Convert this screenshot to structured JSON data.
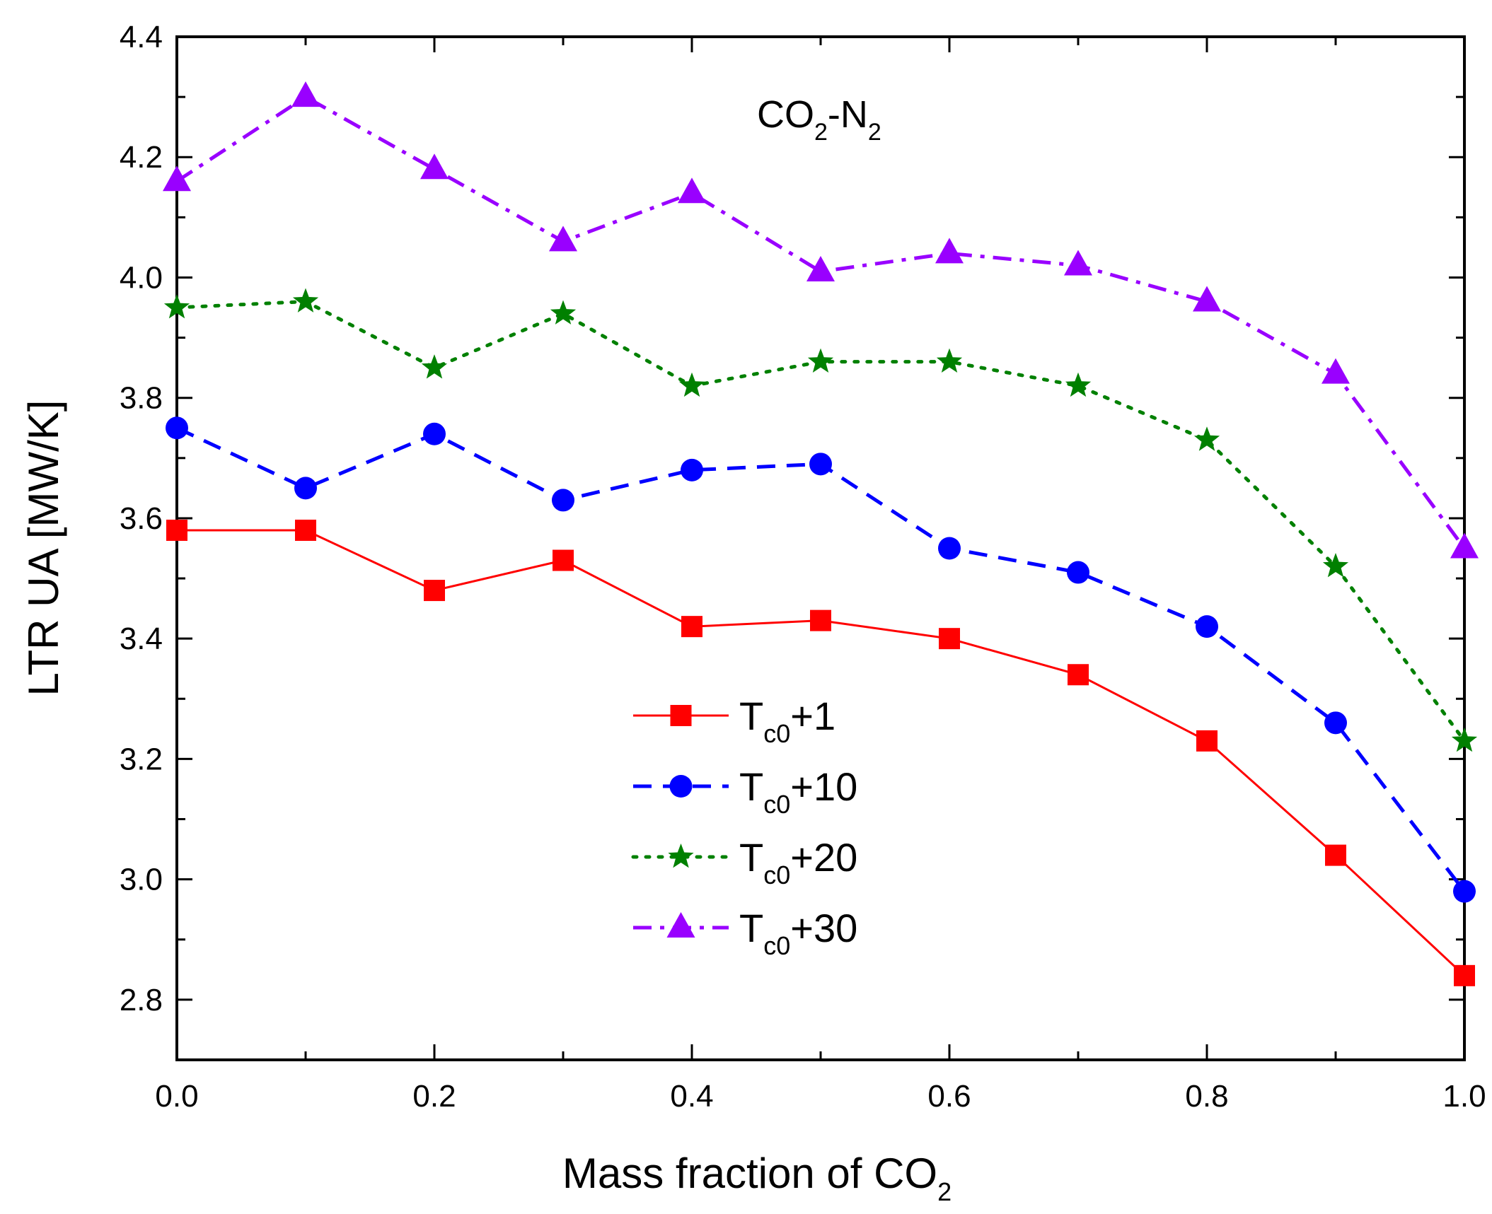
{
  "chart_data": {
    "type": "line",
    "title": "",
    "annotation": {
      "main": "CO",
      "sub1": "2",
      "mid": "-N",
      "sub2": "2"
    },
    "xlabel": {
      "main": "Mass fraction of CO",
      "sub": "2"
    },
    "ylabel": "LTR UA [MW/K]",
    "xlim": [
      0.0,
      1.0
    ],
    "ylim": [
      2.7,
      4.4
    ],
    "xticks": [
      0.0,
      0.2,
      0.4,
      0.6,
      0.8,
      1.0
    ],
    "xtick_labels": [
      "0.0",
      "0.2",
      "0.4",
      "0.6",
      "0.8",
      "1.0"
    ],
    "yticks": [
      2.8,
      3.0,
      3.2,
      3.4,
      3.6,
      3.8,
      4.0,
      4.2,
      4.4
    ],
    "ytick_labels": [
      "2.8",
      "3.0",
      "3.2",
      "3.4",
      "3.6",
      "3.8",
      "4.0",
      "4.2",
      "4.4"
    ],
    "grid": false,
    "legend_position": "center",
    "x": [
      0.0,
      0.1,
      0.2,
      0.3,
      0.4,
      0.5,
      0.6,
      0.7,
      0.8,
      0.9,
      1.0
    ],
    "series": [
      {
        "name": "Tc0+1",
        "label_main": "T",
        "label_sub": "c0",
        "label_tail": "+1",
        "color": "#ff0000",
        "marker": "square",
        "dash": "solid",
        "values": [
          3.58,
          3.58,
          3.48,
          3.53,
          3.42,
          3.43,
          3.4,
          3.34,
          3.23,
          3.04,
          2.84
        ]
      },
      {
        "name": "Tc0+10",
        "label_main": "T",
        "label_sub": "c0",
        "label_tail": "+10",
        "color": "#0000ff",
        "marker": "circle",
        "dash": "dash",
        "values": [
          3.75,
          3.65,
          3.74,
          3.63,
          3.68,
          3.69,
          3.55,
          3.51,
          3.42,
          3.26,
          2.98
        ]
      },
      {
        "name": "Tc0+20",
        "label_main": "T",
        "label_sub": "c0",
        "label_tail": "+20",
        "color": "#008000",
        "marker": "star",
        "dash": "dot",
        "values": [
          3.95,
          3.96,
          3.85,
          3.94,
          3.82,
          3.86,
          3.86,
          3.82,
          3.73,
          3.52,
          3.23
        ]
      },
      {
        "name": "Tc0+30",
        "label_main": "T",
        "label_sub": "c0",
        "label_tail": "+30",
        "color": "#9900ff",
        "marker": "triangle",
        "dash": "dashdot",
        "values": [
          4.16,
          4.3,
          4.18,
          4.06,
          4.14,
          4.01,
          4.04,
          4.02,
          3.96,
          3.84,
          3.55
        ]
      }
    ]
  }
}
